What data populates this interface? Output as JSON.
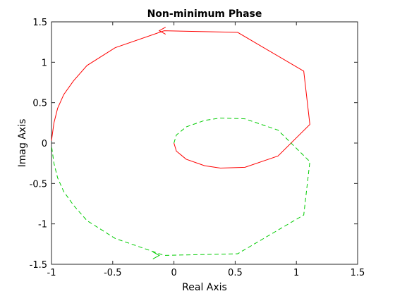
{
  "chart_data": {
    "type": "line",
    "title": "Non-minimum Phase",
    "xlabel": "Real Axis",
    "ylabel": "Imag Axis",
    "xlim": [
      -1,
      1.5
    ],
    "ylim": [
      -1.5,
      1.5
    ],
    "xticks": [
      -1,
      -0.5,
      0,
      0.5,
      1,
      1.5
    ],
    "xtick_labels": [
      "-1",
      "-0.5",
      "0",
      "0.5",
      "1",
      "1.5"
    ],
    "yticks": [
      -1.5,
      -1,
      -0.5,
      0,
      0.5,
      1,
      1.5
    ],
    "ytick_labels": [
      "-1.5",
      "-1",
      "-0.5",
      "0",
      "0.5",
      "1",
      "1.5"
    ],
    "grid": false,
    "series": [
      {
        "color": "#ff0000",
        "style": "solid",
        "points": [
          [
            0,
            0
          ],
          [
            0.02,
            -0.1
          ],
          [
            0.1,
            -0.2
          ],
          [
            0.25,
            -0.28
          ],
          [
            0.38,
            -0.31
          ],
          [
            0.58,
            -0.3
          ],
          [
            0.85,
            -0.16
          ],
          [
            1.11,
            0.23
          ],
          [
            1.06,
            0.89
          ],
          [
            0.52,
            1.37
          ],
          [
            -0.08,
            1.39
          ],
          [
            -0.48,
            1.18
          ],
          [
            -0.71,
            0.96
          ],
          [
            -0.82,
            0.77
          ],
          [
            -0.9,
            0.6
          ],
          [
            -0.95,
            0.43
          ],
          [
            -0.98,
            0.25
          ],
          [
            -1.0,
            0.03
          ]
        ],
        "arrows": [
          {
            "at": [
              -0.12,
              1.39
            ],
            "direction": "left"
          }
        ]
      },
      {
        "color": "#00cc00",
        "style": "dashed",
        "points": [
          [
            0,
            0
          ],
          [
            0.02,
            0.1
          ],
          [
            0.1,
            0.2
          ],
          [
            0.25,
            0.28
          ],
          [
            0.38,
            0.31
          ],
          [
            0.58,
            0.3
          ],
          [
            0.85,
            0.16
          ],
          [
            1.11,
            -0.23
          ],
          [
            1.06,
            -0.89
          ],
          [
            0.52,
            -1.37
          ],
          [
            -0.08,
            -1.39
          ],
          [
            -0.48,
            -1.18
          ],
          [
            -0.71,
            -0.96
          ],
          [
            -0.82,
            -0.77
          ],
          [
            -0.9,
            -0.6
          ],
          [
            -0.95,
            -0.43
          ],
          [
            -0.98,
            -0.25
          ],
          [
            -1.0,
            -0.03
          ]
        ],
        "arrows": [
          {
            "at": [
              -0.12,
              -1.39
            ],
            "direction": "right"
          }
        ]
      }
    ]
  }
}
